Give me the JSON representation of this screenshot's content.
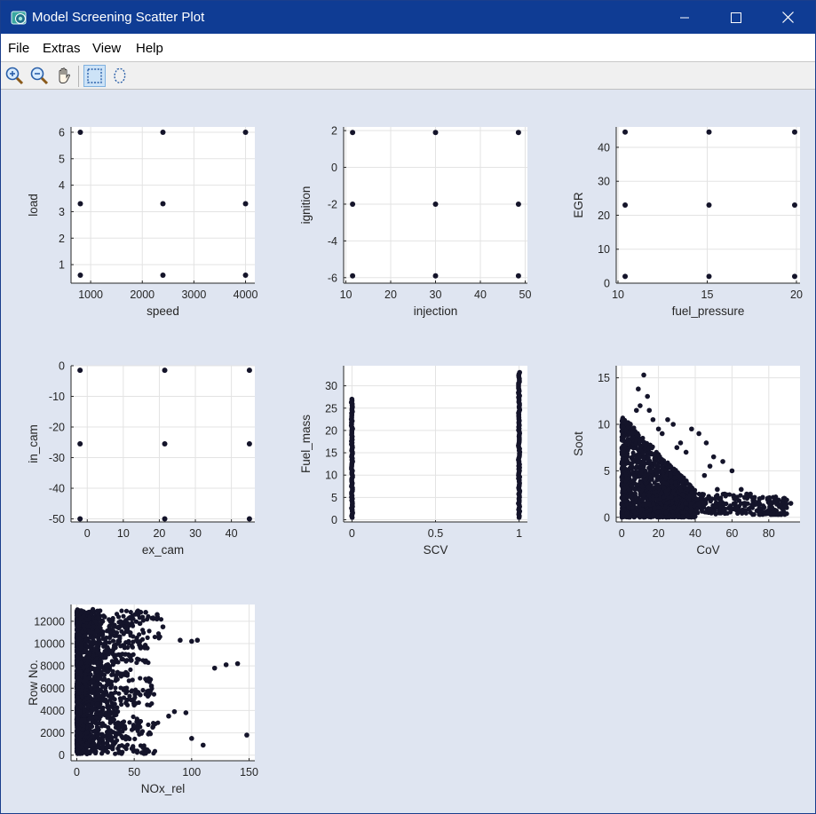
{
  "window": {
    "title": "Model Screening Scatter Plot",
    "minimize_icon": "minimize-icon",
    "maximize_icon": "maximize-icon",
    "close_icon": "close-icon"
  },
  "menu": {
    "items": [
      "File",
      "Extras",
      "View",
      "Help"
    ]
  },
  "toolbar": {
    "tools": [
      {
        "name": "zoom-in-icon",
        "pressed": false
      },
      {
        "name": "zoom-out-icon",
        "pressed": false
      },
      {
        "name": "pan-hand-icon",
        "pressed": false
      },
      {
        "name": "rectangle-select-icon",
        "pressed": true
      },
      {
        "name": "lasso-select-icon",
        "pressed": false
      }
    ]
  },
  "colors": {
    "titlebar": "#0f3c94",
    "figure_background": "#dfe5f1",
    "axes_background": "#ffffff",
    "marker": "#14142a",
    "grid": "#e3e3e3"
  },
  "chart_data": [
    {
      "type": "scatter",
      "xlabel": "speed",
      "ylabel": "load",
      "xlim": [
        620,
        4180
      ],
      "ylim": [
        0.3,
        6.2
      ],
      "xticks": [
        1000,
        2000,
        3000,
        4000
      ],
      "yticks": [
        1,
        2,
        3,
        4,
        5,
        6
      ],
      "x": [
        800,
        2400,
        4000,
        800,
        2400,
        4000,
        800,
        2400,
        4000
      ],
      "y": [
        6,
        6,
        6,
        3.3,
        3.3,
        3.3,
        0.6,
        0.6,
        0.6
      ],
      "grid": true
    },
    {
      "type": "scatter",
      "xlabel": "injection",
      "ylabel": "ignition",
      "xlim": [
        9.5,
        50.5
      ],
      "ylim": [
        -6.3,
        2.2
      ],
      "xticks": [
        10,
        20,
        30,
        40,
        50
      ],
      "yticks": [
        -6,
        -4,
        -2,
        0,
        2
      ],
      "x": [
        11.5,
        30,
        48.5,
        11.5,
        30,
        48.5,
        11.5,
        30,
        48.5
      ],
      "y": [
        1.9,
        1.9,
        1.9,
        -2,
        -2,
        -2,
        -5.9,
        -5.9,
        -5.9
      ],
      "grid": true
    },
    {
      "type": "scatter",
      "xlabel": "fuel_pressure",
      "ylabel": "EGR",
      "xlim": [
        9.9,
        20.2
      ],
      "ylim": [
        0,
        46
      ],
      "xticks": [
        10,
        15,
        20
      ],
      "yticks": [
        0,
        10,
        20,
        30,
        40
      ],
      "x": [
        10.4,
        15.1,
        19.9,
        10.4,
        15.1,
        19.9,
        10.4,
        15.1,
        19.9
      ],
      "y": [
        44.5,
        44.5,
        44.5,
        23,
        23,
        23,
        2,
        2,
        2
      ],
      "grid": true
    },
    {
      "type": "scatter",
      "xlabel": "ex_cam",
      "ylabel": "in_cam",
      "xlim": [
        -4.5,
        46.5
      ],
      "ylim": [
        -51,
        0
      ],
      "xticks": [
        0,
        10,
        20,
        30,
        40
      ],
      "yticks": [
        -50,
        -40,
        -30,
        -20,
        -10,
        0
      ],
      "x": [
        -2,
        21.5,
        45,
        -2,
        21.5,
        45,
        -2,
        21.5,
        45
      ],
      "y": [
        -1.5,
        -1.5,
        -1.5,
        -25.5,
        -25.5,
        -25.5,
        -50,
        -50,
        -50
      ],
      "grid": true
    },
    {
      "type": "scatter",
      "xlabel": "SCV",
      "ylabel": "Fuel_mass",
      "xlim": [
        -0.05,
        1.05
      ],
      "ylim": [
        -0.5,
        34.5
      ],
      "xticks": [
        0,
        0.5,
        1
      ],
      "yticks": [
        0,
        5,
        10,
        15,
        20,
        25,
        30
      ],
      "columns": [
        {
          "x": 0,
          "y_min": 0.5,
          "y_max": 27
        },
        {
          "x": 1,
          "y_min": 0.5,
          "y_max": 33
        }
      ],
      "grid": true
    },
    {
      "type": "scatter",
      "xlabel": "CoV",
      "ylabel": "Soot",
      "xlim": [
        -3,
        97
      ],
      "ylim": [
        -0.5,
        16.3
      ],
      "xticks": [
        0,
        20,
        40,
        60,
        80
      ],
      "yticks": [
        0,
        5,
        10,
        15
      ],
      "x": [
        12,
        9,
        10,
        8,
        14,
        15,
        17,
        20,
        22,
        25,
        28,
        30,
        32,
        35,
        38,
        42,
        46,
        50,
        55,
        60,
        65,
        70,
        75,
        80,
        85,
        88,
        92,
        45,
        48,
        52,
        56,
        62,
        68,
        72,
        4,
        6,
        3,
        18,
        24,
        35
      ],
      "y": [
        15.3,
        13.8,
        12,
        11.5,
        13,
        11.5,
        10.5,
        9.5,
        9,
        10.5,
        10,
        7.5,
        8,
        7,
        9.5,
        9,
        8,
        6.5,
        6,
        5,
        3,
        2.5,
        2,
        2,
        1.8,
        2,
        1.5,
        4.5,
        5.5,
        3,
        2.5,
        2,
        2.5,
        1.8,
        8,
        9,
        6,
        1,
        0.5,
        1.5
      ],
      "grid": true
    },
    {
      "type": "scatter",
      "xlabel": "NOx_rel",
      "ylabel": "Row No.",
      "xlim": [
        -5,
        155
      ],
      "ylim": [
        -500,
        13500
      ],
      "xticks": [
        0,
        50,
        100,
        150
      ],
      "yticks": [
        0,
        2000,
        4000,
        6000,
        8000,
        10000,
        12000
      ],
      "x": [
        70,
        75,
        90,
        100,
        105,
        120,
        130,
        140,
        148,
        100,
        110,
        95,
        85,
        80,
        60,
        55,
        65,
        45,
        50,
        40
      ],
      "y": [
        12600,
        11500,
        10300,
        10200,
        10300,
        7800,
        8100,
        8200,
        1800,
        1500,
        900,
        3800,
        3900,
        3500,
        12800,
        11800,
        6200,
        9000,
        4500,
        2600
      ],
      "grid": true
    }
  ]
}
